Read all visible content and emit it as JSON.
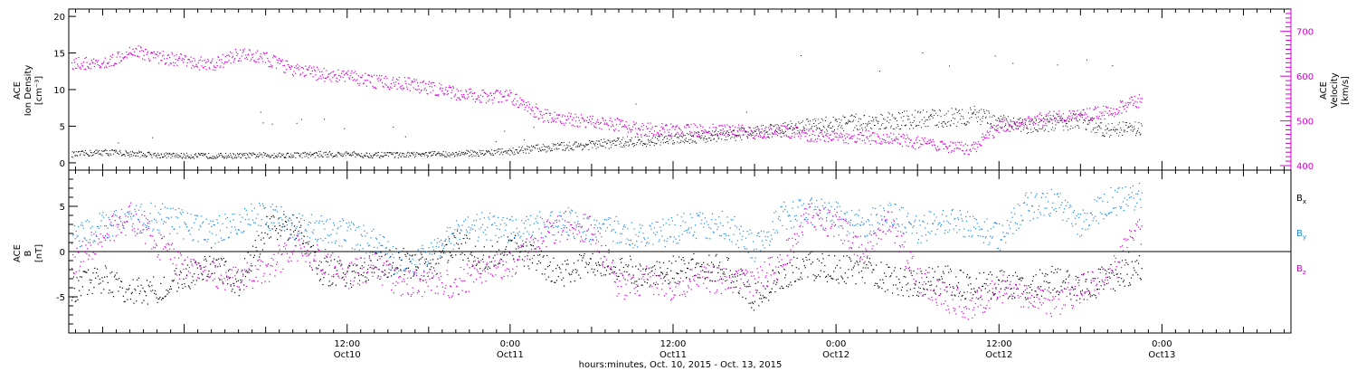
{
  "colors": {
    "axis": "#000000",
    "density": "#000000",
    "velocity": "#d200d2",
    "bx": "#000000",
    "by": "#1e88e5",
    "bz": "#d200d2"
  },
  "x_axis": {
    "label": "hours:minutes, Oct. 10, 2015 - Oct. 13, 2015",
    "range_hours": [
      -8.5,
      81.5
    ],
    "ticks": [
      {
        "hour": 12,
        "line1": "12:00",
        "line2": "Oct10"
      },
      {
        "hour": 24,
        "line1": "0:00",
        "line2": "Oct11"
      },
      {
        "hour": 36,
        "line1": "12:00",
        "line2": "Oct11"
      },
      {
        "hour": 48,
        "line1": "0:00",
        "line2": "Oct12"
      },
      {
        "hour": 60,
        "line1": "12:00",
        "line2": "Oct12"
      },
      {
        "hour": 72,
        "line1": "0:00",
        "line2": "Oct13"
      }
    ]
  },
  "chart_data": [
    {
      "type": "scatter",
      "ylabel_left": [
        "ACE",
        "Ion Density",
        "[cm⁻³]"
      ],
      "ylabel_right": [
        "ACE",
        "Velocity",
        "[km/s]"
      ],
      "ylim_left": [
        -1,
        21
      ],
      "yticks_left": [
        0,
        5,
        10,
        15,
        20
      ],
      "ylim_right": [
        390,
        750
      ],
      "yticks_right": [
        400,
        500,
        600,
        700
      ],
      "series": [
        {
          "axis": "left",
          "x_hours": [
            -8,
            -6,
            -4,
            -2,
            0,
            2,
            4,
            6,
            8,
            10,
            12,
            14,
            16,
            18,
            20,
            22,
            24,
            26,
            28,
            30,
            32,
            34,
            36,
            38,
            40,
            42,
            44,
            46,
            48,
            50,
            52,
            54,
            56,
            58,
            60,
            62,
            64,
            66,
            68,
            70
          ],
          "values": [
            1.2,
            1.5,
            1.3,
            1.1,
            1.0,
            1.0,
            1.0,
            1.1,
            1.1,
            1.2,
            1.2,
            1.1,
            1.1,
            1.2,
            1.3,
            1.4,
            1.6,
            2.0,
            2.3,
            2.5,
            2.8,
            3.0,
            3.4,
            3.6,
            3.8,
            4.2,
            4.6,
            5.0,
            5.4,
            5.6,
            5.8,
            6.0,
            6.2,
            6.6,
            5.5,
            5.0,
            5.5,
            5.8,
            4.5,
            4.8
          ]
        },
        {
          "axis": "right",
          "x_hours": [
            -8,
            -6,
            -4,
            -2,
            0,
            2,
            4,
            6,
            8,
            10,
            12,
            14,
            16,
            18,
            20,
            22,
            24,
            26,
            28,
            30,
            32,
            34,
            36,
            38,
            40,
            42,
            44,
            46,
            48,
            50,
            52,
            54,
            56,
            58,
            60,
            62,
            64,
            66,
            68,
            70
          ],
          "values": [
            630,
            625,
            660,
            645,
            635,
            625,
            650,
            640,
            615,
            605,
            600,
            588,
            585,
            575,
            562,
            556,
            555,
            515,
            505,
            500,
            492,
            482,
            482,
            480,
            480,
            476,
            476,
            470,
            465,
            465,
            460,
            452,
            440,
            438,
            490,
            500,
            510,
            515,
            520,
            545
          ]
        }
      ]
    },
    {
      "type": "scatter",
      "ylabel_left": [
        "ACE",
        "B",
        "[nT]"
      ],
      "ylim": [
        -9,
        9
      ],
      "yticks": [
        -5,
        0,
        5
      ],
      "series": [
        {
          "name": "Bx",
          "x_hours": [
            -8,
            -6,
            -4,
            -2,
            0,
            2,
            4,
            6,
            8,
            10,
            12,
            14,
            16,
            18,
            20,
            22,
            24,
            26,
            28,
            30,
            32,
            34,
            36,
            38,
            40,
            42,
            44,
            46,
            48,
            50,
            52,
            54,
            56,
            58,
            60,
            62,
            64,
            66,
            68,
            70
          ],
          "values": [
            -4,
            -3,
            -4.5,
            -4,
            -3,
            -1,
            -3.5,
            2.5,
            3,
            -2,
            -2.5,
            -1.5,
            -1,
            -2,
            1,
            -1,
            0.5,
            -1,
            -2.5,
            -1,
            -1.5,
            -2.5,
            -2,
            -1.5,
            -2,
            -5,
            -2.5,
            -1.5,
            -2,
            -2,
            -3,
            -3.5,
            -3,
            -4,
            -3.5,
            -4,
            -3,
            -4,
            -3,
            -2
          ]
        },
        {
          "name": "By",
          "x_hours": [
            -8,
            -6,
            -4,
            -2,
            0,
            2,
            4,
            6,
            8,
            10,
            12,
            14,
            16,
            18,
            20,
            22,
            24,
            26,
            28,
            30,
            32,
            34,
            36,
            38,
            40,
            42,
            44,
            46,
            48,
            50,
            52,
            54,
            56,
            58,
            60,
            62,
            64,
            66,
            68,
            70
          ],
          "values": [
            2,
            3,
            3.5,
            4,
            3,
            2,
            3.5,
            4,
            3,
            2.5,
            2,
            1,
            -1.5,
            -0.5,
            2,
            3,
            2.5,
            3,
            3.5,
            2,
            2.5,
            1.5,
            2.5,
            3,
            3,
            0.5,
            4,
            4.5,
            4,
            3,
            4,
            2.5,
            3.5,
            3,
            1.5,
            5,
            5.5,
            3,
            5.5,
            6
          ]
        },
        {
          "name": "Bz",
          "x_hours": [
            -8,
            -6,
            -4,
            -2,
            0,
            2,
            4,
            6,
            8,
            10,
            12,
            14,
            16,
            18,
            20,
            22,
            24,
            26,
            28,
            30,
            32,
            34,
            36,
            38,
            40,
            42,
            44,
            46,
            48,
            50,
            52,
            54,
            56,
            58,
            60,
            62,
            64,
            66,
            68,
            70
          ],
          "values": [
            -1,
            2,
            4,
            1,
            -2,
            -2.5,
            -3,
            -2,
            0.5,
            -1,
            -2.5,
            -1.5,
            -3.5,
            -3.5,
            -3.5,
            -2,
            -1.5,
            1.5,
            3,
            2.5,
            -4,
            -3,
            -4,
            -2.5,
            -3.5,
            -3.5,
            -1,
            4,
            3,
            0,
            3.5,
            -3,
            -5,
            -6,
            -4,
            -5,
            -6,
            -4,
            -3,
            2
          ]
        }
      ]
    }
  ]
}
